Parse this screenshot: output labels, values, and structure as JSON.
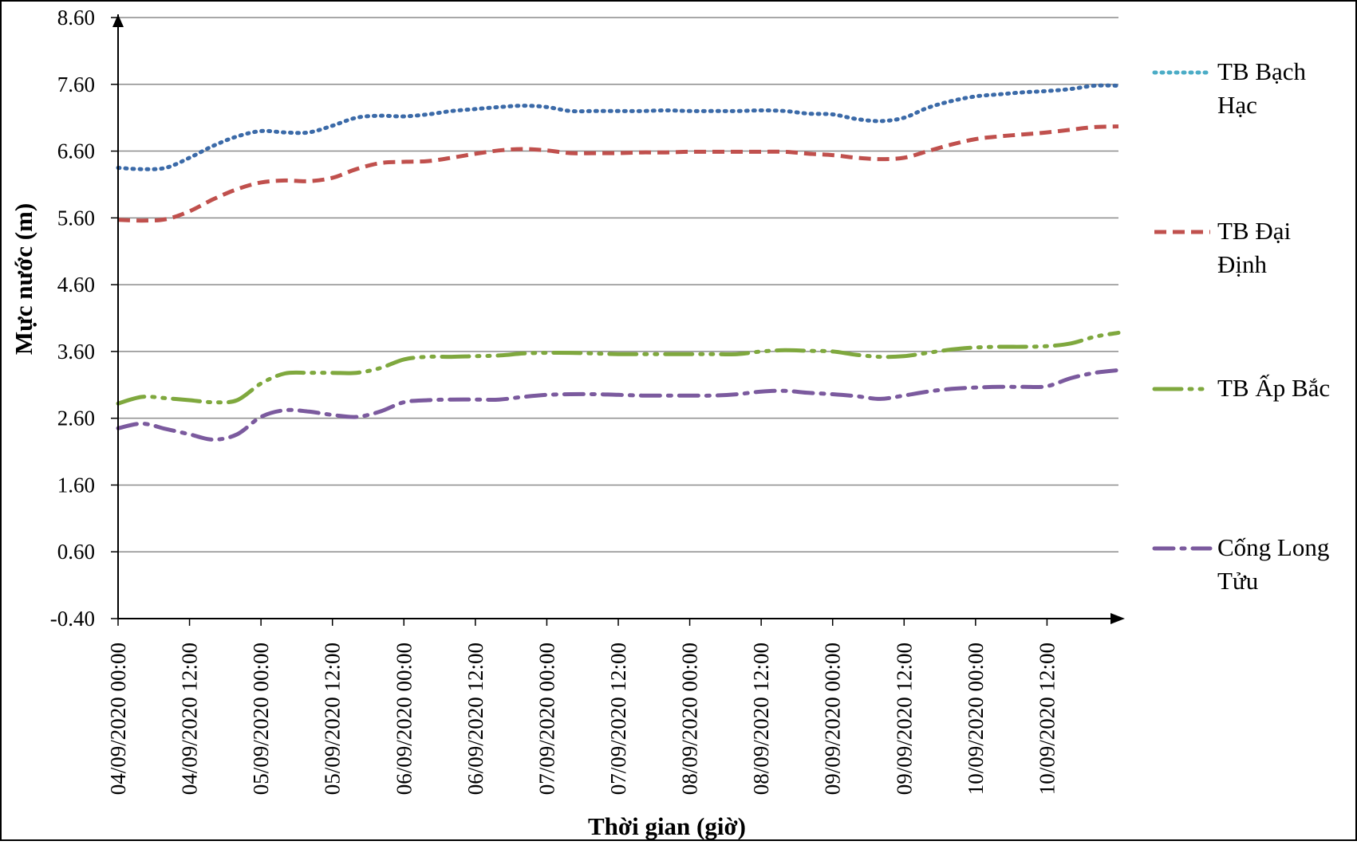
{
  "chart_data": {
    "type": "line",
    "xlabel": "Thời gian (giờ)",
    "ylabel": "Mực nước (m)",
    "ylim": [
      -0.4,
      8.6
    ],
    "y_ticks": [
      "-0.40",
      "0.60",
      "1.60",
      "2.60",
      "3.60",
      "4.60",
      "5.60",
      "6.60",
      "7.60",
      "8.60"
    ],
    "x_range_hours": [
      0,
      168
    ],
    "x_tick_hours": [
      0,
      12,
      24,
      36,
      48,
      60,
      72,
      84,
      96,
      108,
      120,
      132,
      144,
      156
    ],
    "x_tick_labels": [
      "04/09/2020 00:00",
      "04/09/2020 12:00",
      "05/09/2020 00:00",
      "05/09/2020 12:00",
      "06/09/2020 00:00",
      "06/09/2020 12:00",
      "07/09/2020 00:00",
      "07/09/2020 12:00",
      "08/09/2020 00:00",
      "08/09/2020 12:00",
      "09/09/2020 00:00",
      "09/09/2020 12:00",
      "10/09/2020 00:00",
      "10/09/2020 12:00"
    ],
    "grid": true,
    "legend_position": "right",
    "series": [
      {
        "name": "TB Bạch Hạc",
        "color": "#3b6aa8",
        "legend_color": "#4bacc6",
        "style": "dotted",
        "x": [
          0,
          4,
          8,
          12,
          16,
          20,
          24,
          28,
          32,
          36,
          40,
          44,
          48,
          52,
          56,
          60,
          64,
          68,
          72,
          76,
          80,
          84,
          88,
          92,
          96,
          100,
          104,
          108,
          112,
          116,
          120,
          124,
          128,
          132,
          136,
          140,
          144,
          148,
          152,
          156,
          160,
          164,
          168
        ],
        "values": [
          6.35,
          6.33,
          6.35,
          6.5,
          6.68,
          6.82,
          6.9,
          6.88,
          6.88,
          6.98,
          7.1,
          7.13,
          7.12,
          7.15,
          7.2,
          7.23,
          7.26,
          7.28,
          7.26,
          7.2,
          7.2,
          7.2,
          7.2,
          7.21,
          7.2,
          7.2,
          7.2,
          7.21,
          7.2,
          7.16,
          7.15,
          7.08,
          7.05,
          7.1,
          7.25,
          7.35,
          7.42,
          7.45,
          7.48,
          7.5,
          7.53,
          7.58,
          7.58
        ]
      },
      {
        "name": "TB Đại Định",
        "color": "#c0504d",
        "style": "dashed",
        "x": [
          0,
          4,
          8,
          12,
          16,
          20,
          24,
          28,
          32,
          36,
          40,
          44,
          48,
          52,
          56,
          60,
          64,
          68,
          72,
          76,
          80,
          84,
          88,
          92,
          96,
          100,
          104,
          108,
          112,
          116,
          120,
          124,
          128,
          132,
          136,
          140,
          144,
          148,
          152,
          156,
          160,
          164,
          168
        ],
        "values": [
          5.57,
          5.56,
          5.58,
          5.7,
          5.88,
          6.03,
          6.13,
          6.16,
          6.15,
          6.2,
          6.33,
          6.42,
          6.44,
          6.45,
          6.5,
          6.56,
          6.61,
          6.63,
          6.61,
          6.57,
          6.57,
          6.57,
          6.58,
          6.58,
          6.59,
          6.59,
          6.59,
          6.59,
          6.59,
          6.56,
          6.54,
          6.5,
          6.48,
          6.5,
          6.6,
          6.7,
          6.78,
          6.82,
          6.85,
          6.88,
          6.92,
          6.96,
          6.97
        ]
      },
      {
        "name": "TB Ấp Bắc",
        "color": "#7fa83e",
        "style": "long-dash-dot-dot",
        "x": [
          0,
          4,
          8,
          12,
          16,
          20,
          24,
          28,
          32,
          36,
          40,
          44,
          48,
          52,
          56,
          60,
          64,
          68,
          72,
          76,
          80,
          84,
          88,
          92,
          96,
          100,
          104,
          108,
          112,
          116,
          120,
          124,
          128,
          132,
          136,
          140,
          144,
          148,
          152,
          156,
          160,
          164,
          168
        ],
        "values": [
          2.82,
          2.92,
          2.9,
          2.87,
          2.84,
          2.87,
          3.12,
          3.27,
          3.28,
          3.28,
          3.28,
          3.35,
          3.48,
          3.52,
          3.52,
          3.53,
          3.54,
          3.57,
          3.58,
          3.58,
          3.57,
          3.56,
          3.56,
          3.56,
          3.56,
          3.56,
          3.56,
          3.6,
          3.62,
          3.61,
          3.6,
          3.55,
          3.52,
          3.53,
          3.58,
          3.63,
          3.66,
          3.67,
          3.67,
          3.68,
          3.72,
          3.82,
          3.88
        ]
      },
      {
        "name": "Cống Long Tửu",
        "color": "#7b5a9e",
        "style": "dash-dot",
        "x": [
          0,
          4,
          8,
          12,
          16,
          20,
          24,
          28,
          32,
          36,
          40,
          44,
          48,
          52,
          56,
          60,
          64,
          68,
          72,
          76,
          80,
          84,
          88,
          92,
          96,
          100,
          104,
          108,
          112,
          116,
          120,
          124,
          128,
          132,
          136,
          140,
          144,
          148,
          152,
          156,
          160,
          164,
          168
        ],
        "values": [
          2.45,
          2.52,
          2.44,
          2.36,
          2.28,
          2.36,
          2.62,
          2.72,
          2.7,
          2.65,
          2.62,
          2.7,
          2.84,
          2.87,
          2.88,
          2.88,
          2.88,
          2.92,
          2.95,
          2.96,
          2.96,
          2.95,
          2.94,
          2.94,
          2.94,
          2.94,
          2.96,
          3.0,
          3.01,
          2.98,
          2.96,
          2.93,
          2.89,
          2.94,
          3.0,
          3.04,
          3.06,
          3.07,
          3.07,
          3.08,
          3.2,
          3.28,
          3.32
        ]
      }
    ]
  }
}
